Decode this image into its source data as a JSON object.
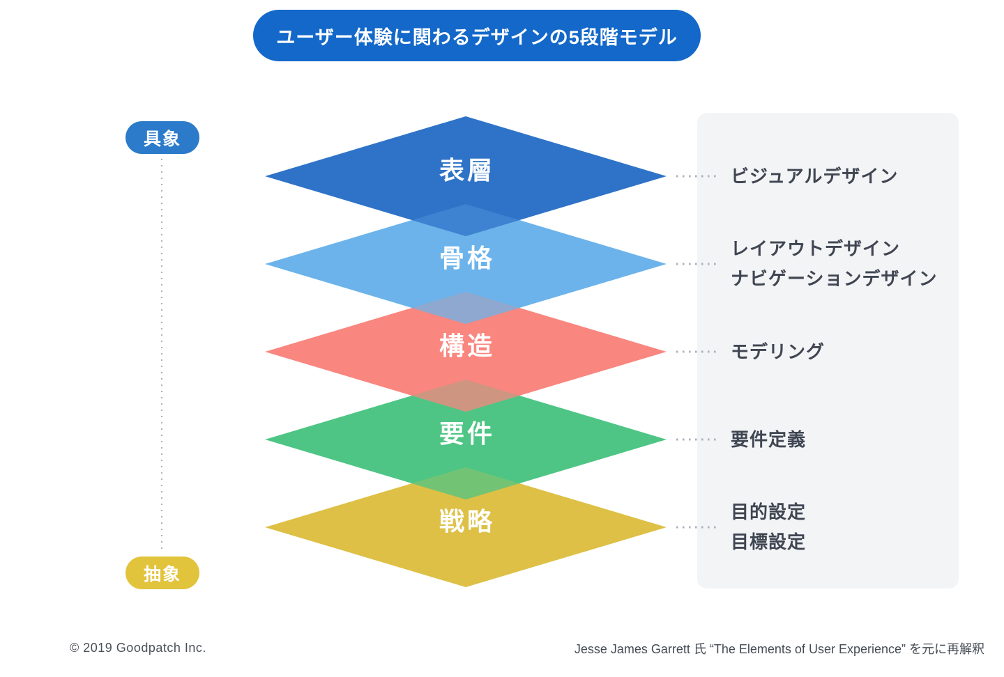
{
  "title": "ユーザー体験に関わるデザインの5段階モデル",
  "axis": {
    "concrete_label": "具象",
    "abstract_label": "抽象"
  },
  "layers": [
    {
      "label": "表層",
      "color": "#2e73c8",
      "annotations": [
        "ビジュアルデザイン"
      ]
    },
    {
      "label": "骨格",
      "color": "#6bb3ea",
      "annotations": [
        "レイアウトデザイン",
        "ナビゲーションデザイン"
      ]
    },
    {
      "label": "構造",
      "color": "#f9867f",
      "annotations": [
        "モデリング"
      ]
    },
    {
      "label": "要件",
      "color": "#4ec584",
      "annotations": [
        "要件定義"
      ]
    },
    {
      "label": "戦略",
      "color": "#ddc045",
      "annotations": [
        "目的設定",
        "目標設定"
      ]
    }
  ],
  "colors": {
    "title_bg": "#1368c9",
    "concrete_pill_bg": "#2b7bca",
    "abstract_pill_bg": "#e2c33c",
    "panel_bg": "#f3f4f6",
    "annotation_text": "#3f4652",
    "dotted_line": "#a9b0ba",
    "background": "#ffffff"
  },
  "footer": {
    "copyright": "© 2019 Goodpatch Inc.",
    "attribution": "Jesse James Garrett 氏 “The Elements of User Experience” を元に再解釈"
  }
}
